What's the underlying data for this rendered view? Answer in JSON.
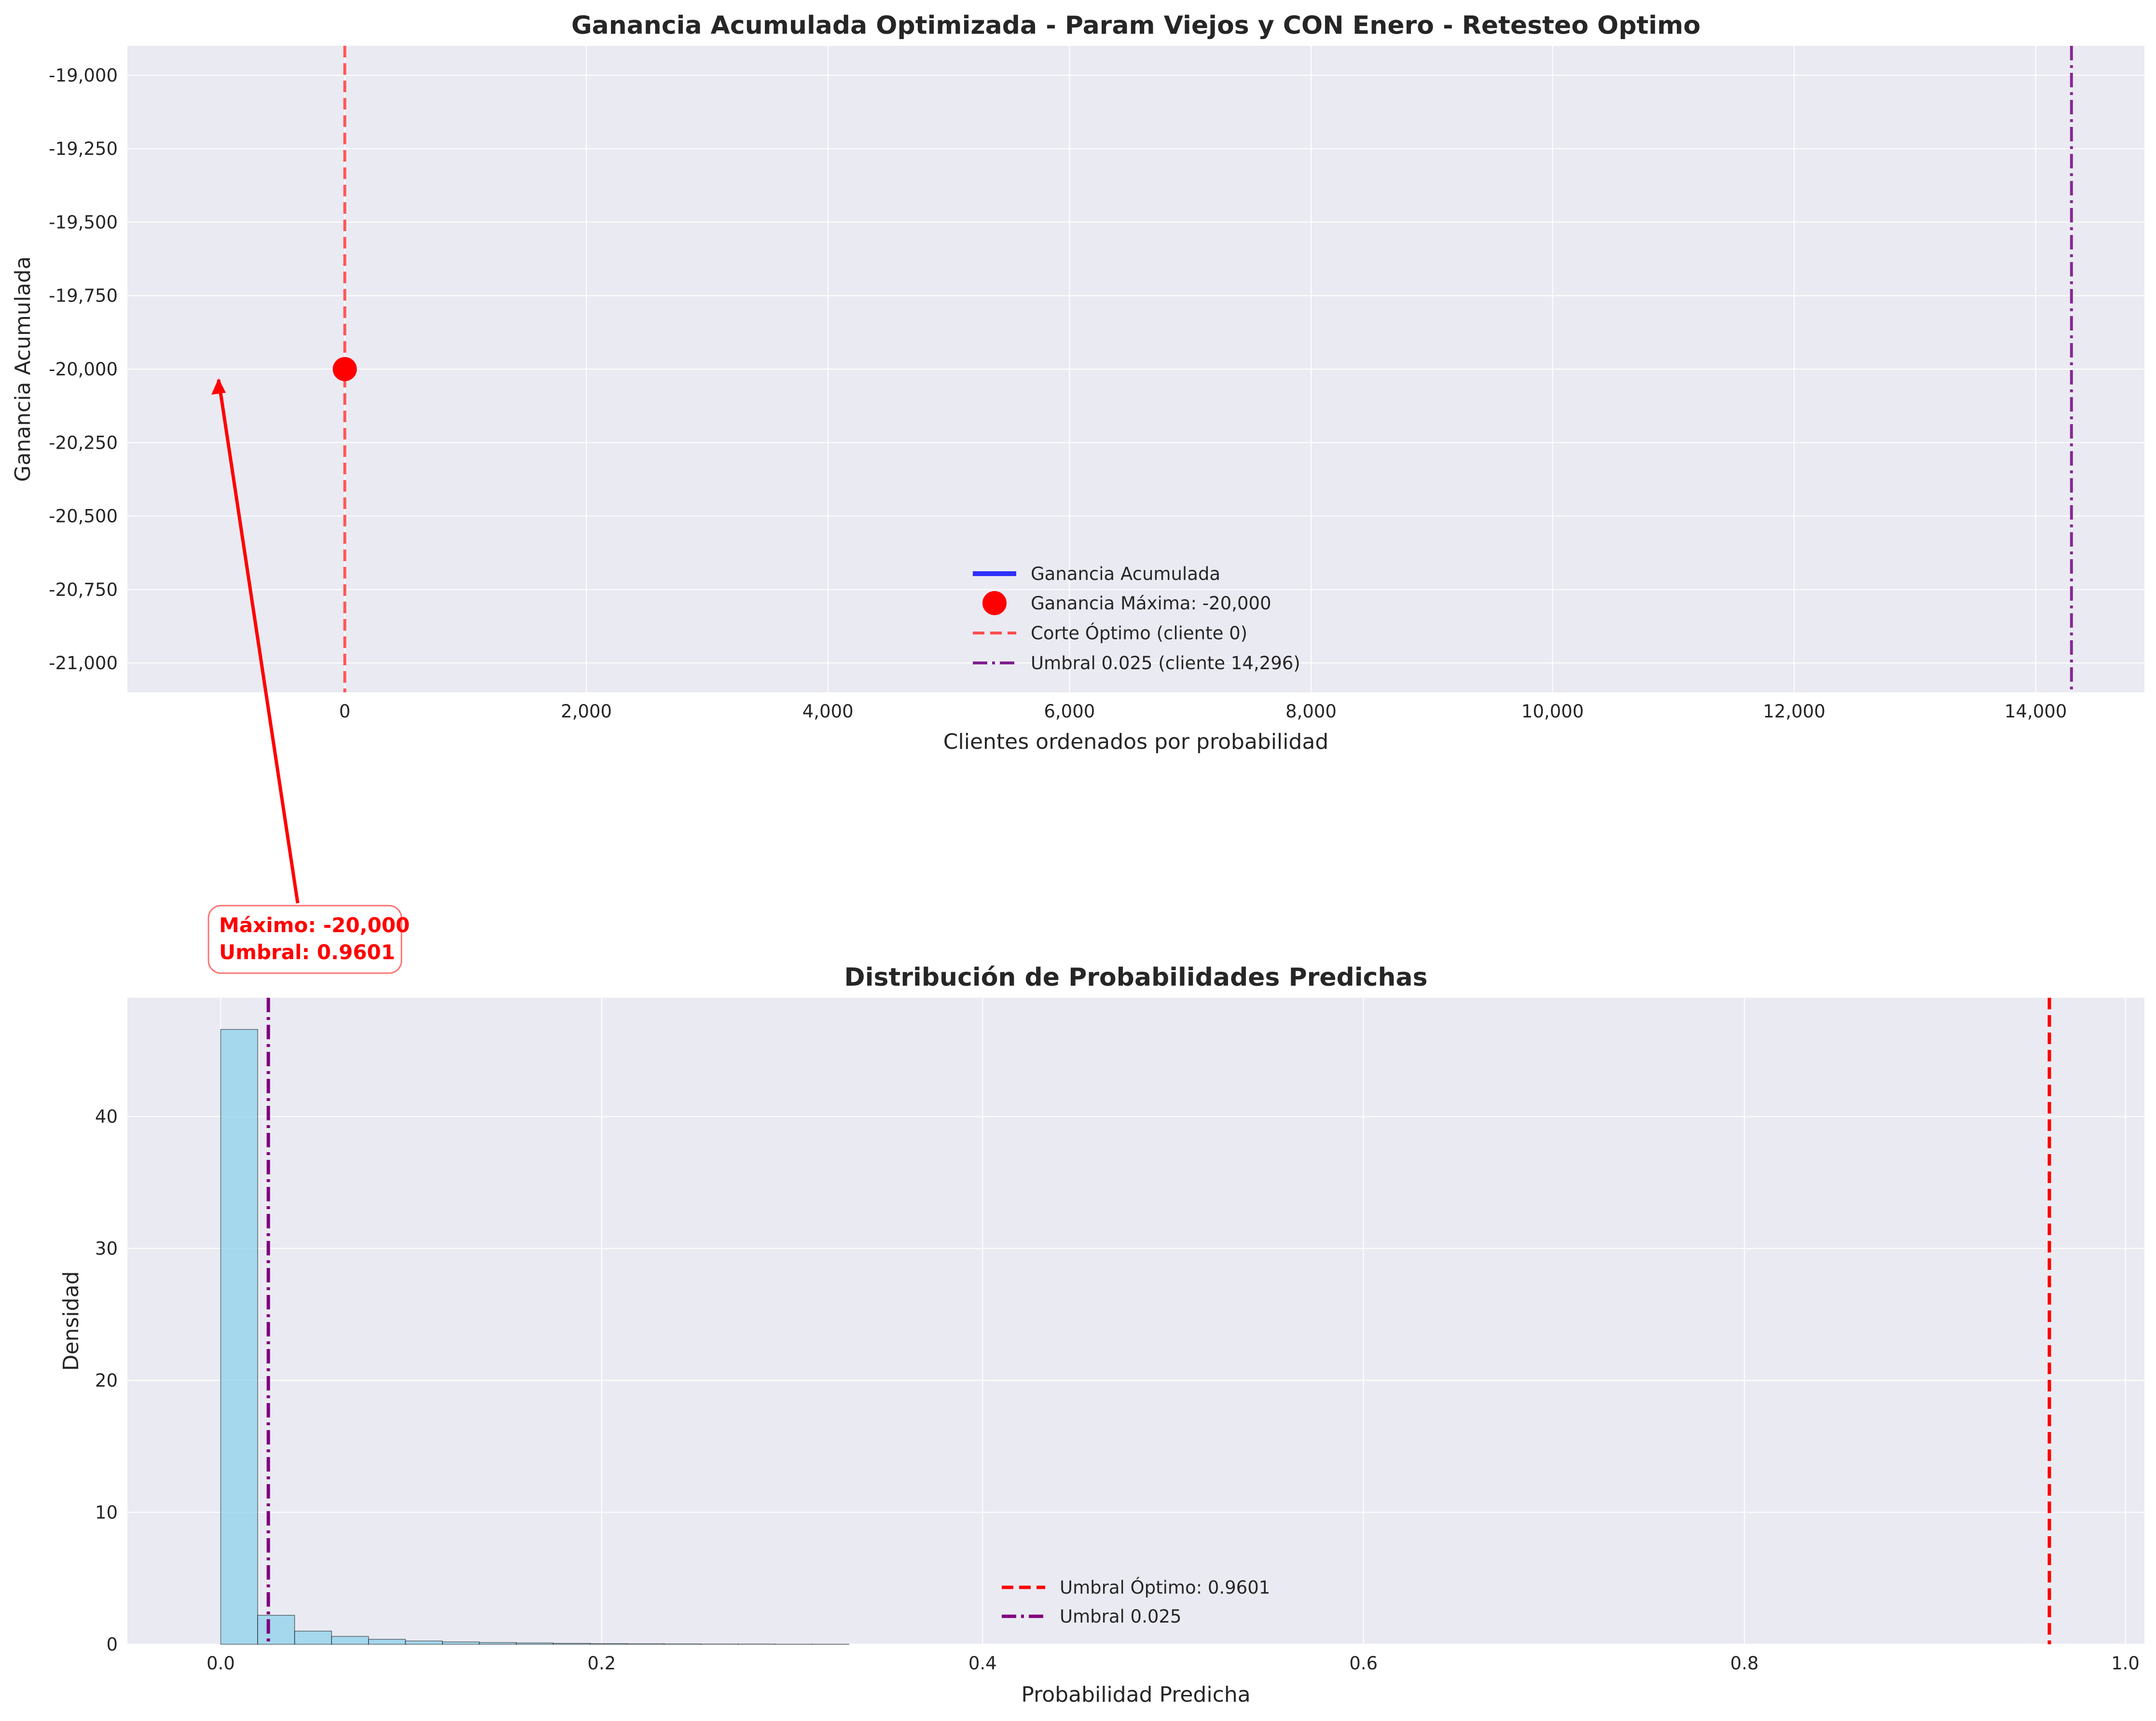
{
  "chart_data": [
    {
      "type": "line",
      "title": "Ganancia Acumulada Optimizada - Param Viejos y CON Enero - Retesteo Optimo",
      "xlabel": "Clientes ordenados por probabilidad",
      "ylabel": "Ganancia Acumulada",
      "xlim": [
        -1800,
        14900
      ],
      "ylim": [
        -21100,
        -18900
      ],
      "xticks": [
        0,
        2000,
        4000,
        6000,
        8000,
        10000,
        12000,
        14000
      ],
      "xtick_labels": [
        "0",
        "2,000",
        "4,000",
        "6,000",
        "8,000",
        "10,000",
        "12,000",
        "14,000"
      ],
      "yticks": [
        -19000,
        -19250,
        -19500,
        -19750,
        -20000,
        -20250,
        -20500,
        -20750,
        -21000
      ],
      "ytick_labels": [
        "-19,000",
        "-19,250",
        "-19,500",
        "-19,750",
        "-20,000",
        "-20,250",
        "-20,500",
        "-20,750",
        "-21,000"
      ],
      "grid": true,
      "legend_position": "lower-center",
      "series": [
        {
          "name": "Ganancia Acumulada",
          "x": [
            0
          ],
          "y": [
            -20000
          ],
          "color": "#0000ff",
          "style": "solid"
        }
      ],
      "max_point": {
        "name": "Ganancia Máxima: -20,000",
        "x": 0,
        "y": -20000,
        "color": "#ff0000"
      },
      "vlines": [
        {
          "name": "Corte Óptimo (cliente 0)",
          "x": 0,
          "color": "#ff4d4d",
          "style": "dashed"
        },
        {
          "name": "Umbral 0.025 (cliente 14,296)",
          "x": 14296,
          "color": "#7f1f8f",
          "style": "dashdot"
        }
      ],
      "annotation": {
        "line1": "Máximo: -20,000",
        "line2": "Umbral: 0.9601",
        "color": "#ff0000"
      }
    },
    {
      "type": "histogram",
      "title": "Distribución de Probabilidades Predichas",
      "xlabel": "Probabilidad Predicha",
      "ylabel": "Densidad",
      "xlim": [
        -0.049,
        1.01
      ],
      "ylim": [
        0,
        49
      ],
      "xticks": [
        0.0,
        0.2,
        0.4,
        0.6,
        0.8,
        1.0
      ],
      "xtick_labels": [
        "0.0",
        "0.2",
        "0.4",
        "0.6",
        "0.8",
        "1.0"
      ],
      "yticks": [
        0,
        10,
        20,
        30,
        40
      ],
      "ytick_labels": [
        "0",
        "10",
        "20",
        "30",
        "40"
      ],
      "grid": true,
      "legend_position": "lower-center",
      "bin_width": 0.0194,
      "bins": [
        {
          "x0": 0.0,
          "density": 46.6
        },
        {
          "x0": 0.0194,
          "density": 2.2
        },
        {
          "x0": 0.0388,
          "density": 1.0
        },
        {
          "x0": 0.0582,
          "density": 0.6
        },
        {
          "x0": 0.0776,
          "density": 0.38
        },
        {
          "x0": 0.097,
          "density": 0.25
        },
        {
          "x0": 0.1164,
          "density": 0.18
        },
        {
          "x0": 0.1358,
          "density": 0.13
        },
        {
          "x0": 0.1552,
          "density": 0.1
        },
        {
          "x0": 0.1746,
          "density": 0.07
        },
        {
          "x0": 0.194,
          "density": 0.05
        },
        {
          "x0": 0.2134,
          "density": 0.04
        },
        {
          "x0": 0.2328,
          "density": 0.03
        },
        {
          "x0": 0.2522,
          "density": 0.02
        },
        {
          "x0": 0.2716,
          "density": 0.02
        },
        {
          "x0": 0.291,
          "density": 0.01
        },
        {
          "x0": 0.3104,
          "density": 0.01
        }
      ],
      "bar_color": "#87ceeb",
      "vlines": [
        {
          "name": "Umbral Óptimo: 0.9601",
          "x": 0.9601,
          "color": "#ff0000",
          "style": "dashed"
        },
        {
          "name": "Umbral 0.025",
          "x": 0.025,
          "color": "#800080",
          "style": "dashdot"
        }
      ]
    }
  ]
}
